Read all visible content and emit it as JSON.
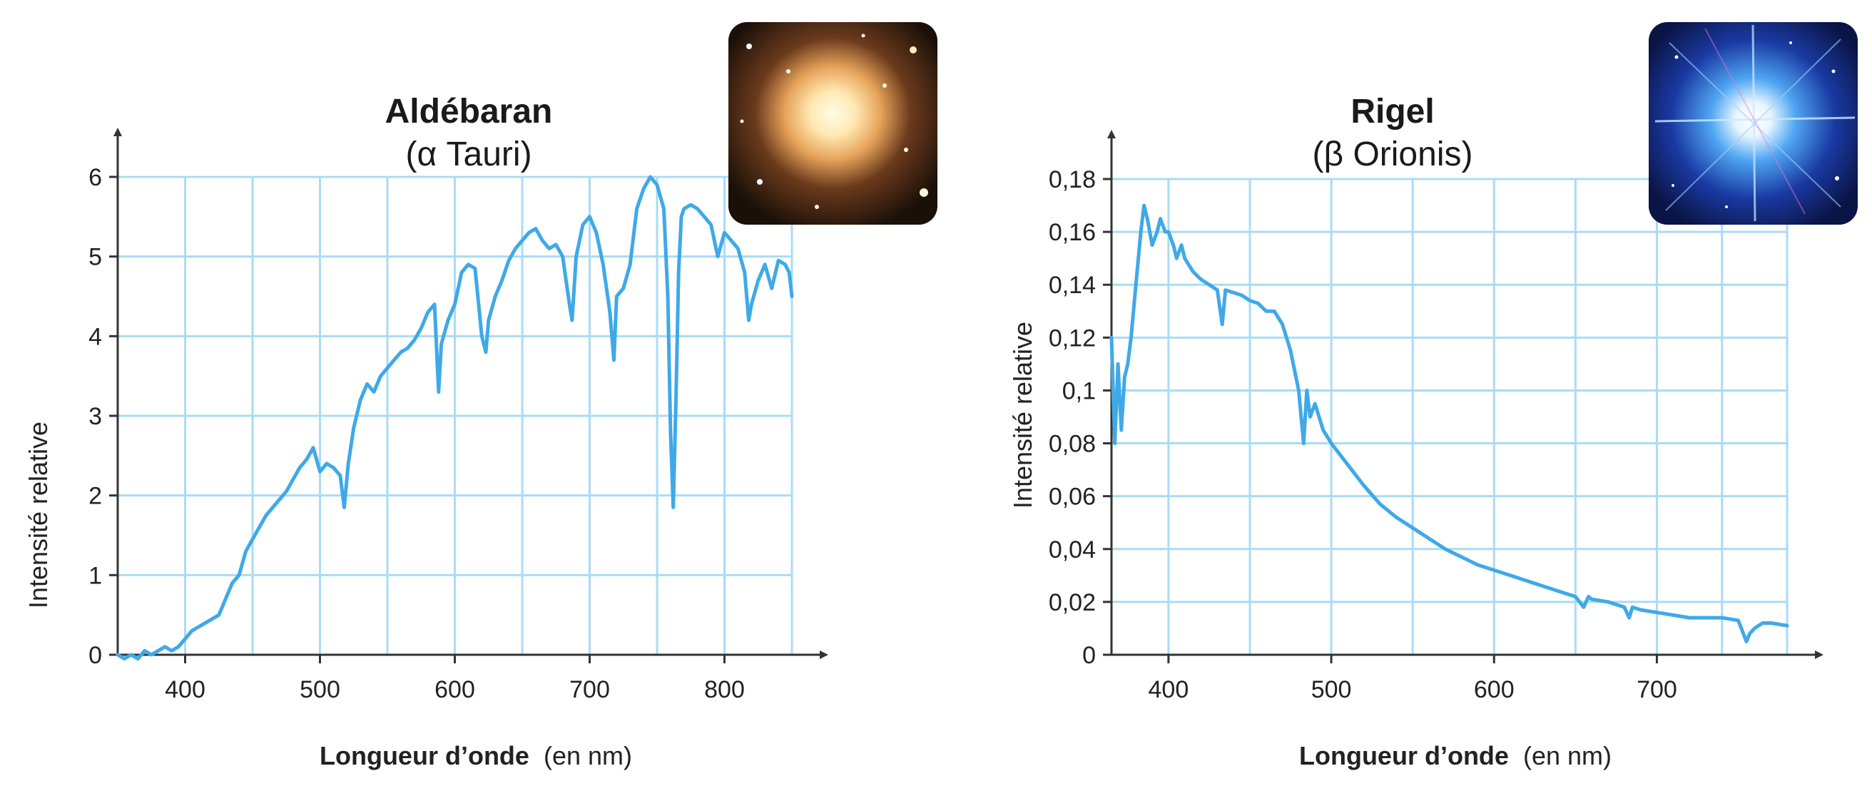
{
  "chart_data": [
    {
      "type": "line",
      "title": "Aldébaran",
      "subtitle": "(α Tauri)",
      "xlabel_bold": "Longueur d’onde",
      "xlabel_unit": "(en nm)",
      "ylabel": "Intensité relative",
      "xlim": [
        350,
        850
      ],
      "ylim": [
        0,
        6
      ],
      "x_ticks": [
        400,
        500,
        600,
        700,
        800
      ],
      "x_tick_labels": [
        "400",
        "500",
        "600",
        "700",
        "800"
      ],
      "y_ticks": [
        0,
        1,
        2,
        3,
        4,
        5,
        6
      ],
      "y_tick_labels": [
        "0",
        "1",
        "2",
        "3",
        "4",
        "5",
        "6"
      ],
      "x_grid": [
        350,
        400,
        450,
        500,
        550,
        600,
        650,
        700,
        750,
        800,
        850
      ],
      "grid": true,
      "image_icon": "star-photo-orange",
      "series": [
        {
          "color": "#3fa9e8",
          "x": [
            350,
            355,
            360,
            365,
            370,
            375,
            380,
            385,
            390,
            395,
            400,
            405,
            410,
            415,
            420,
            425,
            430,
            435,
            440,
            445,
            450,
            455,
            460,
            465,
            470,
            475,
            480,
            485,
            490,
            495,
            500,
            505,
            510,
            515,
            518,
            521,
            525,
            530,
            535,
            540,
            545,
            550,
            555,
            560,
            565,
            570,
            575,
            580,
            585,
            588,
            590,
            595,
            600,
            605,
            610,
            615,
            620,
            623,
            625,
            630,
            635,
            640,
            645,
            650,
            655,
            660,
            665,
            670,
            675,
            680,
            685,
            687,
            690,
            695,
            700,
            705,
            710,
            715,
            718,
            720,
            725,
            730,
            735,
            740,
            745,
            750,
            755,
            758,
            760,
            762,
            764,
            766,
            768,
            770,
            775,
            780,
            785,
            790,
            795,
            800,
            805,
            810,
            815,
            818,
            820,
            825,
            830,
            835,
            840,
            845,
            848,
            850
          ],
          "y": [
            0,
            -0.05,
            0,
            -0.05,
            0.05,
            0,
            0.05,
            0.1,
            0.05,
            0.1,
            0.2,
            0.3,
            0.35,
            0.4,
            0.45,
            0.5,
            0.7,
            0.9,
            1.0,
            1.3,
            1.45,
            1.6,
            1.75,
            1.85,
            1.95,
            2.05,
            2.2,
            2.35,
            2.45,
            2.6,
            2.3,
            2.4,
            2.35,
            2.25,
            1.85,
            2.4,
            2.85,
            3.2,
            3.4,
            3.3,
            3.5,
            3.6,
            3.7,
            3.8,
            3.85,
            3.95,
            4.1,
            4.3,
            4.4,
            3.3,
            3.9,
            4.2,
            4.4,
            4.8,
            4.9,
            4.85,
            4.0,
            3.8,
            4.2,
            4.5,
            4.7,
            4.95,
            5.1,
            5.2,
            5.3,
            5.35,
            5.2,
            5.1,
            5.15,
            5.0,
            4.4,
            4.2,
            5.0,
            5.4,
            5.5,
            5.3,
            4.9,
            4.3,
            3.7,
            4.5,
            4.6,
            4.9,
            5.6,
            5.85,
            6.0,
            5.9,
            5.6,
            4.5,
            2.8,
            1.85,
            3.2,
            4.8,
            5.5,
            5.6,
            5.65,
            5.6,
            5.5,
            5.4,
            5.0,
            5.3,
            5.2,
            5.1,
            4.8,
            4.2,
            4.4,
            4.7,
            4.9,
            4.6,
            4.95,
            4.9,
            4.8,
            4.5
          ]
        }
      ]
    },
    {
      "type": "line",
      "title": "Rigel",
      "subtitle": "(β Orionis)",
      "xlabel_bold": "Longueur d’onde",
      "xlabel_unit": "(en nm)",
      "ylabel": "Intensité relative",
      "xlim": [
        365,
        780
      ],
      "ylim": [
        0,
        0.18
      ],
      "x_ticks": [
        400,
        500,
        600,
        700
      ],
      "x_tick_labels": [
        "400",
        "500",
        "600",
        "700"
      ],
      "y_ticks": [
        0,
        0.02,
        0.04,
        0.06,
        0.08,
        0.1,
        0.12,
        0.14,
        0.16,
        0.18
      ],
      "y_tick_labels": [
        "0",
        "0,02",
        "0,04",
        "0,06",
        "0,08",
        "0,1",
        "0,12",
        "0,14",
        "0,16",
        "0,18"
      ],
      "x_grid": [
        365,
        400,
        450,
        500,
        550,
        600,
        650,
        700,
        740,
        780
      ],
      "grid": true,
      "image_icon": "star-photo-blue",
      "series": [
        {
          "color": "#3fa9e8",
          "x": [
            365,
            367,
            369,
            371,
            373,
            375,
            377,
            380,
            383,
            385,
            387,
            390,
            393,
            395,
            398,
            400,
            403,
            405,
            408,
            410,
            415,
            420,
            425,
            430,
            433,
            435,
            440,
            445,
            450,
            455,
            460,
            465,
            470,
            475,
            480,
            483,
            485,
            487,
            490,
            495,
            500,
            510,
            520,
            530,
            540,
            550,
            560,
            570,
            580,
            590,
            600,
            610,
            620,
            630,
            640,
            650,
            655,
            658,
            660,
            670,
            680,
            683,
            685,
            690,
            700,
            710,
            720,
            730,
            740,
            750,
            755,
            757,
            760,
            765,
            770,
            780
          ],
          "y": [
            0.12,
            0.08,
            0.11,
            0.085,
            0.105,
            0.11,
            0.12,
            0.14,
            0.16,
            0.17,
            0.165,
            0.155,
            0.16,
            0.165,
            0.16,
            0.16,
            0.155,
            0.15,
            0.155,
            0.15,
            0.145,
            0.142,
            0.14,
            0.138,
            0.125,
            0.138,
            0.137,
            0.136,
            0.134,
            0.133,
            0.13,
            0.13,
            0.125,
            0.115,
            0.1,
            0.08,
            0.1,
            0.09,
            0.095,
            0.085,
            0.08,
            0.072,
            0.064,
            0.057,
            0.052,
            0.048,
            0.044,
            0.04,
            0.037,
            0.034,
            0.032,
            0.03,
            0.028,
            0.026,
            0.024,
            0.022,
            0.018,
            0.022,
            0.021,
            0.02,
            0.018,
            0.014,
            0.018,
            0.017,
            0.016,
            0.015,
            0.014,
            0.014,
            0.014,
            0.013,
            0.005,
            0.008,
            0.01,
            0.012,
            0.012,
            0.011
          ]
        }
      ]
    }
  ]
}
